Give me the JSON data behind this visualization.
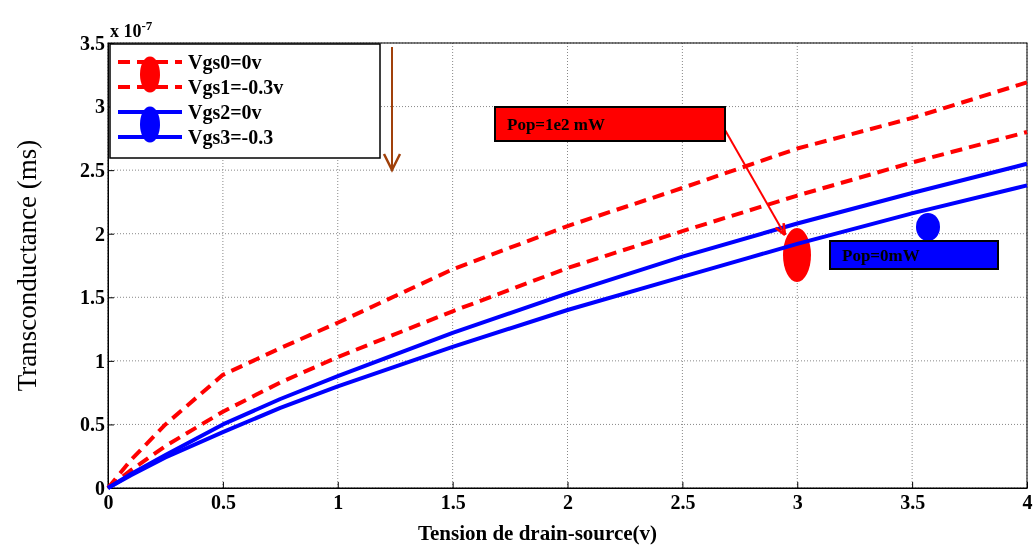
{
  "chart_data": {
    "type": "line",
    "xlabel": "Tension de drain-source(v)",
    "ylabel": "Transconductance (ms)",
    "x": [
      0,
      0.1,
      0.25,
      0.5,
      0.75,
      1,
      1.5,
      2,
      2.5,
      3,
      3.5,
      4
    ],
    "series": [
      {
        "name": "Vgs0=0v",
        "color": "#ff0000",
        "line_style": "dashed",
        "values": [
          0,
          0.22,
          0.5,
          0.89,
          1.1,
          1.3,
          1.72,
          2.06,
          2.36,
          2.67,
          2.91,
          3.19
        ]
      },
      {
        "name": "Vgs1=-0.3v",
        "color": "#ff0000",
        "line_style": "dashed",
        "values": [
          0,
          0.14,
          0.33,
          0.6,
          0.83,
          1.03,
          1.39,
          1.73,
          2.02,
          2.3,
          2.56,
          2.8
        ]
      },
      {
        "name": "Vgs2=0v",
        "color": "#0000ff",
        "line_style": "solid",
        "values": [
          0,
          0.11,
          0.26,
          0.5,
          0.7,
          0.88,
          1.22,
          1.53,
          1.82,
          2.08,
          2.32,
          2.55
        ]
      },
      {
        "name": "Vgs3=-0.3",
        "color": "#0000ff",
        "line_style": "solid",
        "values": [
          0,
          0.1,
          0.24,
          0.44,
          0.63,
          0.8,
          1.11,
          1.4,
          1.66,
          1.92,
          2.16,
          2.38
        ]
      }
    ],
    "xlim": [
      0,
      4
    ],
    "xticks": [
      0,
      0.5,
      1,
      1.5,
      2,
      2.5,
      3,
      3.5,
      4
    ],
    "ylim": [
      0,
      3.5
    ],
    "yticks": [
      0,
      0.5,
      1,
      1.5,
      2,
      2.5,
      3,
      3.5
    ],
    "grid": true,
    "legend": "top left",
    "marker": "none",
    "annotations": [
      "x 10$^{-7}$",
      "Pop=1e2 mW",
      "Pop=0mW"
    ]
  }
}
